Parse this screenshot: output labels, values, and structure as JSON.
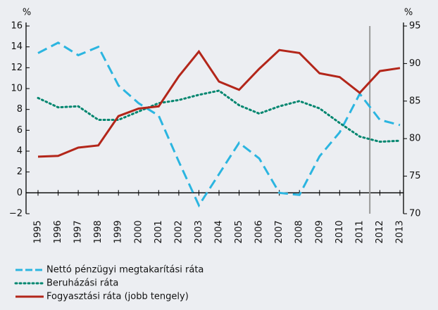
{
  "chart_data": {
    "type": "line",
    "y_unit": "%",
    "y2_unit": "%",
    "categories": [
      "1995",
      "1996",
      "1997",
      "1998",
      "1999",
      "2000",
      "2001",
      "2002",
      "2003",
      "2004",
      "2005",
      "2006",
      "2007",
      "2008",
      "2009",
      "2010",
      "2011",
      "2012",
      "2013"
    ],
    "series": [
      {
        "name": "Nettó pénzügyi megtakarítási ráta",
        "color": "#2bb5e0",
        "dash": "dashed",
        "axis": "y",
        "values": [
          13.4,
          14.4,
          13.2,
          14.0,
          10.3,
          8.6,
          7.4,
          3.0,
          -1.2,
          1.8,
          4.8,
          3.3,
          0.0,
          -0.2,
          3.5,
          5.8,
          9.5,
          7.0,
          6.5
        ]
      },
      {
        "name": "Beruházási ráta",
        "color": "#00866f",
        "dash": "dotted",
        "axis": "y",
        "values": [
          9.1,
          8.2,
          8.3,
          7.0,
          7.0,
          7.8,
          8.6,
          8.9,
          9.4,
          9.8,
          8.4,
          7.6,
          8.3,
          8.8,
          8.1,
          6.7,
          5.4,
          4.9,
          5.0
        ]
      },
      {
        "name": "Fogyasztási ráta (jobb tengely)",
        "color": "#b3261a",
        "dash": "solid",
        "axis": "y2",
        "values": [
          77.6,
          77.7,
          78.8,
          79.1,
          83.0,
          84.0,
          84.3,
          88.3,
          91.6,
          87.6,
          86.5,
          89.3,
          91.8,
          91.4,
          88.7,
          88.2,
          86.1,
          89.0,
          89.4
        ]
      }
    ],
    "ylim": [
      -2,
      16
    ],
    "yticks": [
      {
        "value": -2,
        "label": "−2"
      },
      0,
      2,
      4,
      6,
      8,
      10,
      12,
      14,
      16
    ],
    "y2lim": [
      70,
      95
    ],
    "y2ticks": [
      70,
      75,
      80,
      85,
      90,
      95
    ],
    "vertical_line": 2011.5,
    "legend": "bottom-left"
  }
}
